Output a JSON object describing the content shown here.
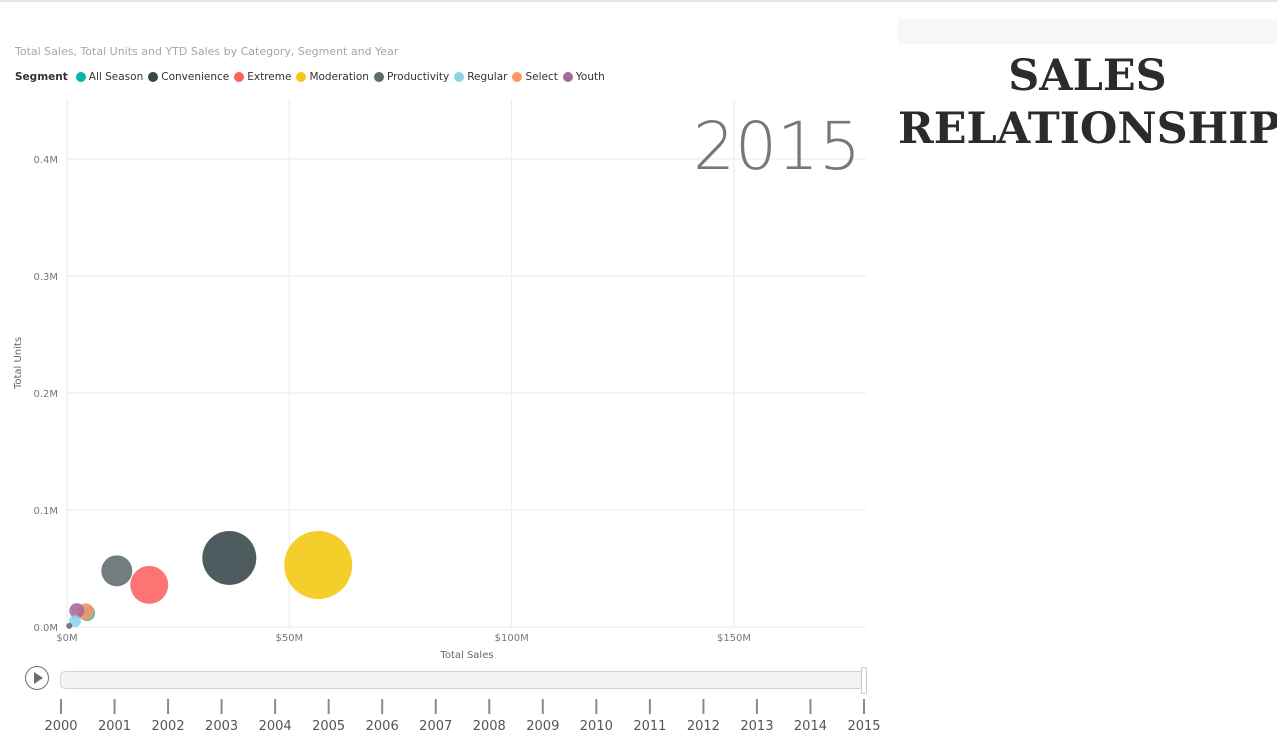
{
  "chart_data": {
    "type": "scatter",
    "title": "Total Sales, Total Units and YTD Sales by Category, Segment and Year",
    "xlabel": "Total Sales",
    "ylabel": "Total Units",
    "xlim": [
      0,
      180
    ],
    "ylim": [
      0,
      0.45
    ],
    "x_unit": "$M",
    "y_unit": "M",
    "x_ticks": [
      0,
      50,
      100,
      150
    ],
    "x_tick_labels": [
      "$0M",
      "$50M",
      "$100M",
      "$150M"
    ],
    "y_ticks": [
      0,
      0.1,
      0.2,
      0.3,
      0.4
    ],
    "y_tick_labels": [
      "0.0M",
      "0.1M",
      "0.2M",
      "0.3M",
      "0.4M"
    ],
    "grid": true,
    "current_year": "2015",
    "legend": {
      "title": "Segment",
      "placement": "top-left",
      "entries": [
        {
          "name": "All Season",
          "color": "#01b8aa"
        },
        {
          "name": "Convenience",
          "color": "#374649"
        },
        {
          "name": "Extreme",
          "color": "#fd625e"
        },
        {
          "name": "Moderation",
          "color": "#f2c80f"
        },
        {
          "name": "Productivity",
          "color": "#5f6b6d"
        },
        {
          "name": "Regular",
          "color": "#8ad4eb"
        },
        {
          "name": "Select",
          "color": "#fe9666"
        },
        {
          "name": "Youth",
          "color": "#a66999"
        }
      ]
    },
    "series": [
      {
        "name": "Moderation",
        "x": 56.5,
        "y": 0.053,
        "size": 34,
        "color": "#f2c80f"
      },
      {
        "name": "Convenience",
        "x": 36.5,
        "y": 0.059,
        "size": 27,
        "color": "#374649"
      },
      {
        "name": "Extreme",
        "x": 18.5,
        "y": 0.036,
        "size": 19,
        "color": "#fd625e"
      },
      {
        "name": "Productivity",
        "x": 11.2,
        "y": 0.048,
        "size": 15.5,
        "color": "#5f6b6d"
      },
      {
        "name": "All Season",
        "x": 4.5,
        "y": 0.012,
        "size": 8,
        "color": "#01b8aa"
      },
      {
        "name": "Select",
        "x": 4.2,
        "y": 0.013,
        "size": 8.5,
        "color": "#fe9666"
      },
      {
        "name": "Youth",
        "x": 2.2,
        "y": 0.014,
        "size": 7.5,
        "color": "#a66999"
      },
      {
        "name": "Regular",
        "x": 1.8,
        "y": 0.005,
        "size": 6,
        "color": "#8ad4eb"
      },
      {
        "name": "Regular",
        "x": 0.5,
        "y": 0.001,
        "size": 3,
        "color": "#5f6b6d"
      }
    ]
  },
  "side_panel": {
    "heading_line1": "SALES",
    "heading_line2": "RELATIONSHIP"
  },
  "play_axis": {
    "years": [
      "2000",
      "2001",
      "2002",
      "2003",
      "2004",
      "2005",
      "2006",
      "2007",
      "2008",
      "2009",
      "2010",
      "2011",
      "2012",
      "2013",
      "2014",
      "2015"
    ],
    "selected": "2015",
    "progress": 1.0
  }
}
